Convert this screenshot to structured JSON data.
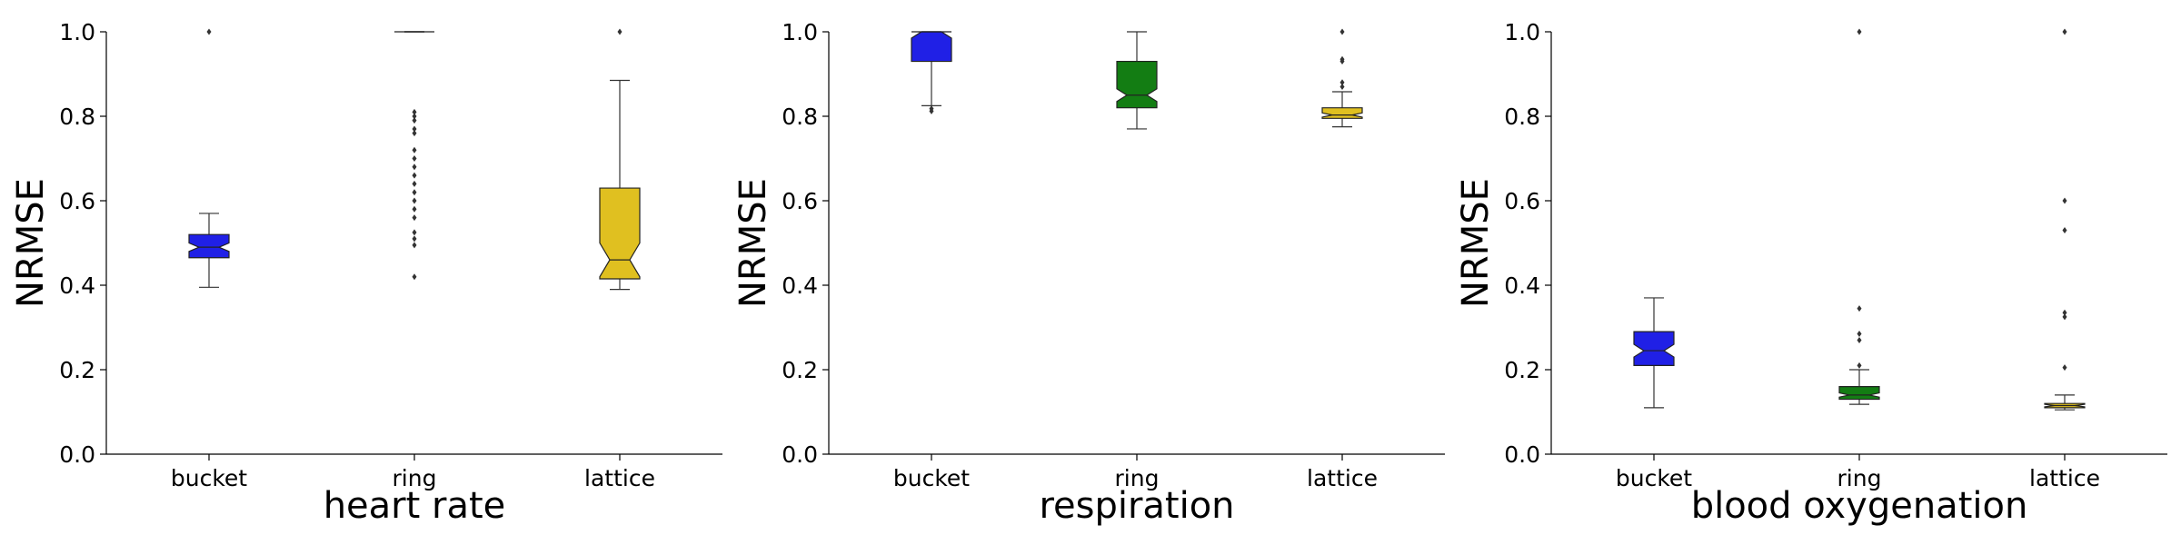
{
  "chart_data": [
    {
      "type": "box",
      "xlabel": "heart rate",
      "ylabel": "NRMSE",
      "ylim": [
        0,
        1.0
      ],
      "yticks": [
        "0.0",
        "0.2",
        "0.4",
        "0.6",
        "0.8",
        "1.0"
      ],
      "categories": [
        "bucket",
        "ring",
        "lattice"
      ],
      "colors": [
        "#2020e6",
        "#137d13",
        "#e0c020"
      ],
      "boxes": [
        {
          "whislo": 0.395,
          "q1": 0.465,
          "med": 0.49,
          "q3": 0.52,
          "whishi": 0.57,
          "notch_lo": 0.48,
          "notch_hi": 0.5,
          "fliers": [
            1.0
          ]
        },
        {
          "whislo": 1.0,
          "q1": 1.0,
          "med": 1.0,
          "q3": 1.0,
          "whishi": 1.0,
          "notch_lo": 1.0,
          "notch_hi": 1.0,
          "fliers": [
            0.42,
            0.495,
            0.51,
            0.525,
            0.56,
            0.58,
            0.6,
            0.62,
            0.64,
            0.66,
            0.68,
            0.7,
            0.72,
            0.76,
            0.77,
            0.79,
            0.8,
            0.81
          ]
        },
        {
          "whislo": 0.39,
          "q1": 0.415,
          "med": 0.46,
          "q3": 0.63,
          "whishi": 0.885,
          "notch_lo": 0.42,
          "notch_hi": 0.5,
          "fliers": [
            1.0
          ]
        }
      ]
    },
    {
      "type": "box",
      "xlabel": "respiration",
      "ylabel": "NRMSE",
      "ylim": [
        0,
        1.0
      ],
      "yticks": [
        "0.0",
        "0.2",
        "0.4",
        "0.6",
        "0.8",
        "1.0"
      ],
      "categories": [
        "bucket",
        "ring",
        "lattice"
      ],
      "colors": [
        "#2020e6",
        "#137d13",
        "#e0c020"
      ],
      "boxes": [
        {
          "whislo": 0.825,
          "q1": 0.93,
          "med": 1.0,
          "q3": 1.0,
          "whishi": 1.0,
          "notch_lo": 0.985,
          "notch_hi": 1.0,
          "fliers": [
            0.812,
            0.818
          ]
        },
        {
          "whislo": 0.77,
          "q1": 0.82,
          "med": 0.85,
          "q3": 0.93,
          "whishi": 1.0,
          "notch_lo": 0.835,
          "notch_hi": 0.865,
          "fliers": []
        },
        {
          "whislo": 0.775,
          "q1": 0.795,
          "med": 0.803,
          "q3": 0.82,
          "whishi": 0.858,
          "notch_lo": 0.798,
          "notch_hi": 0.808,
          "fliers": [
            0.87,
            0.88,
            0.93,
            0.935,
            1.0
          ]
        }
      ]
    },
    {
      "type": "box",
      "xlabel": "blood oxygenation",
      "ylabel": "NRMSE",
      "ylim": [
        0,
        1.0
      ],
      "yticks": [
        "0.0",
        "0.2",
        "0.4",
        "0.6",
        "0.8",
        "1.0"
      ],
      "categories": [
        "bucket",
        "ring",
        "lattice"
      ],
      "colors": [
        "#2020e6",
        "#137d13",
        "#e0c020"
      ],
      "boxes": [
        {
          "whislo": 0.11,
          "q1": 0.21,
          "med": 0.245,
          "q3": 0.29,
          "whishi": 0.37,
          "notch_lo": 0.23,
          "notch_hi": 0.26,
          "fliers": []
        },
        {
          "whislo": 0.118,
          "q1": 0.13,
          "med": 0.14,
          "q3": 0.16,
          "whishi": 0.2,
          "notch_lo": 0.135,
          "notch_hi": 0.145,
          "fliers": [
            0.21,
            0.27,
            0.285,
            0.345,
            1.0
          ]
        },
        {
          "whislo": 0.105,
          "q1": 0.11,
          "med": 0.115,
          "q3": 0.12,
          "whishi": 0.14,
          "notch_lo": 0.112,
          "notch_hi": 0.118,
          "fliers": [
            0.205,
            0.325,
            0.335,
            0.53,
            0.6,
            1.0
          ]
        }
      ]
    }
  ]
}
